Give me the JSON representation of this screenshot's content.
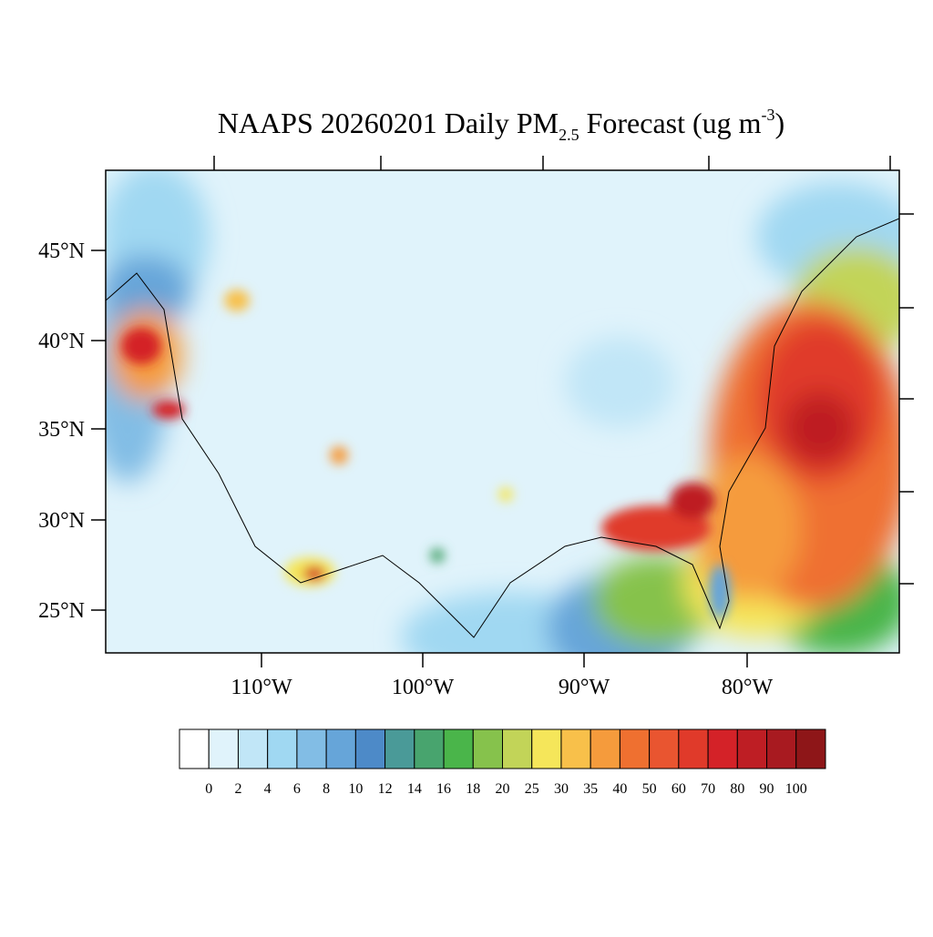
{
  "title": {
    "main": "NAAPS 20260201 Daily PM",
    "sub": "2.5",
    "rest": " Forecast (ug m",
    "sup": "-3",
    "end": ")"
  },
  "lat_labels": [
    "45°N",
    "40°N",
    "35°N",
    "30°N",
    "25°N"
  ],
  "lon_labels": [
    "110°W",
    "100°W",
    "90°W",
    "80°W"
  ],
  "colorbar": {
    "labels": [
      0,
      2,
      4,
      6,
      8,
      10,
      12,
      14,
      16,
      18,
      20,
      25,
      30,
      35,
      40,
      50,
      60,
      70,
      80,
      90,
      100
    ],
    "colors": [
      "#ffffff",
      "#e0f3fb",
      "#c1e6f7",
      "#a0d8f2",
      "#82bde5",
      "#66a5d9",
      "#4d8ac8",
      "#4a9a98",
      "#48a46e",
      "#4ab54a",
      "#86c24c",
      "#c2d458",
      "#f5e65a",
      "#f8c04a",
      "#f59b3c",
      "#ef7030",
      "#e95530",
      "#e03a2a",
      "#d42228",
      "#be1e24",
      "#a81a20",
      "#8e1618"
    ]
  }
}
